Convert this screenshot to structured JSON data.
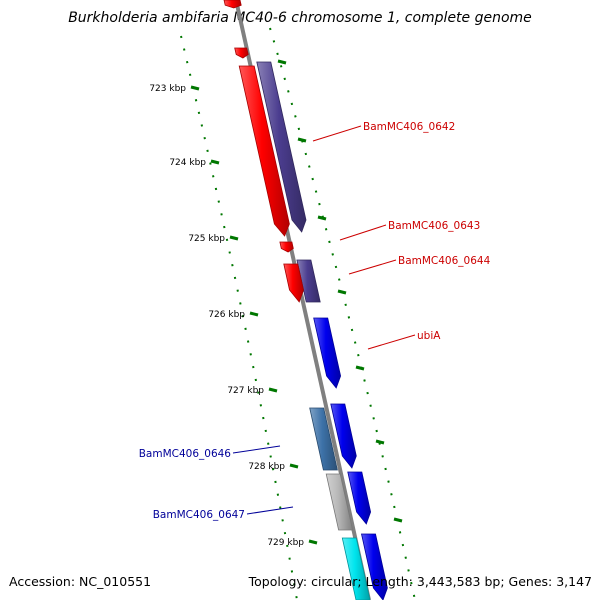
{
  "title": "Burkholderia ambifaria MC40-6 chromosome 1, complete genome",
  "accession": "Accession: NC_010551",
  "topology_info": "Topology: circular; Length: 3,443,583 bp; Genes: 3,147",
  "colors": {
    "backbone": "#808080",
    "ruler": "#007700",
    "forward_label": "#cc0000",
    "reverse_label": "#000099",
    "red": "#ff0000",
    "slate": "#4b3d8f",
    "blue": "#0000ee",
    "steel": "#3d72a8",
    "gray": "#b8b8b8",
    "cyan": "#00e5ee"
  },
  "ruler_ticks": [
    {
      "label": "723 kbp"
    },
    {
      "label": "724 kbp"
    },
    {
      "label": "725 kbp"
    },
    {
      "label": "726 kbp"
    },
    {
      "label": "727 kbp"
    },
    {
      "label": "728 kbp"
    },
    {
      "label": "729 kbp"
    }
  ],
  "features": [
    {
      "color": "red"
    },
    {
      "color": "red"
    },
    {
      "color": "slate"
    },
    {
      "color": "red"
    },
    {
      "color": "red"
    },
    {
      "color": "slate"
    },
    {
      "color": "red"
    },
    {
      "color": "blue"
    },
    {
      "color": "steel"
    },
    {
      "color": "blue"
    },
    {
      "color": "gray"
    },
    {
      "color": "blue"
    },
    {
      "color": "cyan"
    },
    {
      "color": "blue"
    }
  ],
  "gene_labels": [
    {
      "name": "BamMC406_0642",
      "strand": "forward"
    },
    {
      "name": "BamMC406_0643",
      "strand": "forward"
    },
    {
      "name": "BamMC406_0644",
      "strand": "forward"
    },
    {
      "name": "ubiA",
      "strand": "forward"
    },
    {
      "name": "BamMC406_0646",
      "strand": "reverse"
    },
    {
      "name": "BamMC406_0647",
      "strand": "reverse"
    }
  ]
}
